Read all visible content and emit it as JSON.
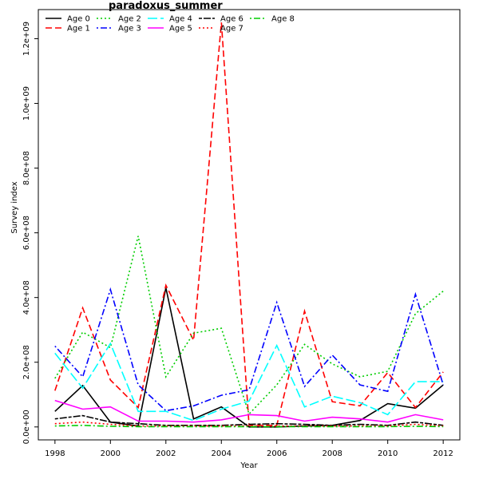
{
  "chart_data": {
    "type": "line",
    "title": "paradoxus_summer",
    "xlabel": "Year",
    "ylabel": "Survey index",
    "x": [
      1998,
      1999,
      2000,
      2001,
      2002,
      2003,
      2004,
      2005,
      2006,
      2007,
      2008,
      2009,
      2010,
      2011,
      2012
    ],
    "xticks": [
      "1998",
      "2000",
      "2002",
      "2004",
      "2006",
      "2008",
      "2010",
      "2012"
    ],
    "xlim": [
      1997.4,
      2012.6
    ],
    "yticks": [
      {
        "value": 0,
        "label": "0.0e+00"
      },
      {
        "value": 200000000,
        "label": "2.0e+08"
      },
      {
        "value": 400000000,
        "label": "4.0e+08"
      },
      {
        "value": 600000000,
        "label": "6.0e+08"
      },
      {
        "value": 800000000,
        "label": "8.0e+08"
      },
      {
        "value": 1000000000,
        "label": "1.0e+09"
      },
      {
        "value": 1200000000,
        "label": "1.2e+09"
      }
    ],
    "ylim": [
      -40000000,
      1290000000
    ],
    "legend_position": "top-left",
    "series": [
      {
        "name": "Age 0",
        "color": "#000000",
        "dash": "solid",
        "values": [
          48000000,
          128000000,
          15000000,
          3000000,
          430000000,
          25000000,
          62000000,
          0,
          0,
          3000000,
          5000000,
          20000000,
          72000000,
          58000000,
          130000000
        ]
      },
      {
        "name": "Age 1",
        "color": "#ff0000",
        "dash": "dashed",
        "values": [
          112000000,
          368000000,
          145000000,
          60000000,
          438000000,
          268000000,
          1250000000,
          5000000,
          5000000,
          358000000,
          78000000,
          65000000,
          168000000,
          60000000,
          170000000
        ]
      },
      {
        "name": "Age 2",
        "color": "#00cd00",
        "dash": "dotted",
        "values": [
          150000000,
          293000000,
          245000000,
          590000000,
          155000000,
          290000000,
          305000000,
          40000000,
          130000000,
          255000000,
          195000000,
          155000000,
          172000000,
          350000000,
          420000000
        ]
      },
      {
        "name": "Age 3",
        "color": "#0000ff",
        "dash": "dotdash",
        "values": [
          250000000,
          155000000,
          425000000,
          130000000,
          50000000,
          65000000,
          98000000,
          115000000,
          385000000,
          125000000,
          222000000,
          130000000,
          110000000,
          410000000,
          130000000
        ]
      },
      {
        "name": "Age 4",
        "color": "#00ffff",
        "dash": "longdash",
        "values": [
          228000000,
          120000000,
          258000000,
          48000000,
          48000000,
          20000000,
          55000000,
          80000000,
          252000000,
          62000000,
          95000000,
          75000000,
          38000000,
          140000000,
          140000000
        ]
      },
      {
        "name": "Age 5",
        "color": "#ff00ff",
        "dash": "solid",
        "values": [
          82000000,
          55000000,
          62000000,
          18000000,
          18000000,
          15000000,
          22000000,
          38000000,
          35000000,
          18000000,
          30000000,
          25000000,
          15000000,
          38000000,
          22000000
        ]
      },
      {
        "name": "Age 6",
        "color": "#000000",
        "dash": "twodash",
        "values": [
          25000000,
          35000000,
          15000000,
          10000000,
          5000000,
          5000000,
          5000000,
          8000000,
          10000000,
          8000000,
          5000000,
          8000000,
          5000000,
          15000000,
          5000000
        ]
      },
      {
        "name": "Age 7",
        "color": "#ff0000",
        "dash": "dotted",
        "values": [
          10000000,
          15000000,
          8000000,
          3000000,
          3000000,
          3000000,
          3000000,
          3000000,
          3000000,
          3000000,
          3000000,
          3000000,
          3000000,
          8000000,
          3000000
        ]
      },
      {
        "name": "Age 8",
        "color": "#00cd00",
        "dash": "dotdash",
        "values": [
          3000000,
          5000000,
          2000000,
          1000000,
          1000000,
          1000000,
          1000000,
          1000000,
          1000000,
          1000000,
          1000000,
          1000000,
          1000000,
          2000000,
          1000000
        ]
      }
    ]
  }
}
